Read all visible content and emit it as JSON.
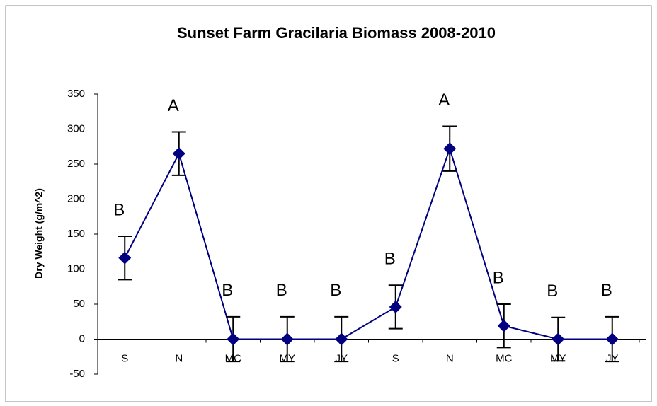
{
  "chart_data": {
    "type": "line",
    "title": "Sunset Farm Gracilaria Biomass 2008-2010",
    "y_label": "Dry Weight (g/m^2)",
    "categories": [
      "S",
      "N",
      "MC",
      "MY",
      "JY",
      "S",
      "N",
      "MC",
      "MY",
      "JY"
    ],
    "series": [
      {
        "name": "Biomass",
        "color": "#000080",
        "values": [
          116,
          265,
          0,
          0,
          0,
          46,
          272,
          19,
          0,
          0
        ],
        "errors": [
          31,
          31,
          32,
          32,
          32,
          31,
          32,
          31,
          31,
          32
        ]
      }
    ],
    "annotations": [
      "B",
      "A",
      "B",
      "B",
      "B",
      "B",
      "A",
      "B",
      "B",
      "B"
    ],
    "ylim": [
      -50,
      350
    ],
    "yticks": [
      -50,
      0,
      50,
      100,
      150,
      200,
      250,
      300,
      350
    ],
    "grid": false,
    "legend": false
  }
}
